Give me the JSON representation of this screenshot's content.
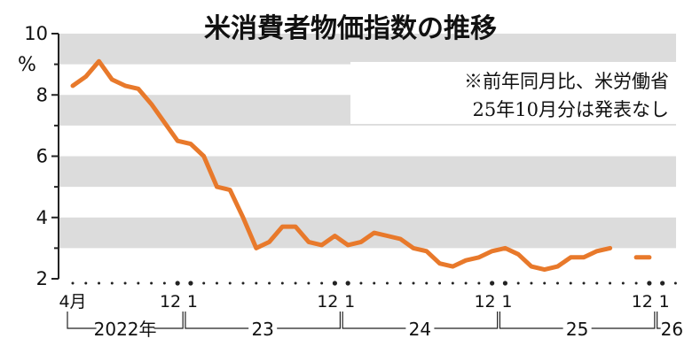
{
  "title": "米消費者物価指数の推移",
  "note": {
    "line1": "※前年同月比、米労働省",
    "line2": "25年10月分は発表なし"
  },
  "y_unit": "%",
  "x_ticks": [
    {
      "label": "4月",
      "index": 0
    },
    {
      "label": "12",
      "index": 8
    },
    {
      "label": "1",
      "index": 9
    },
    {
      "label": "12",
      "index": 20
    },
    {
      "label": "1",
      "index": 21
    },
    {
      "label": "12",
      "index": 32
    },
    {
      "label": "1",
      "index": 33
    },
    {
      "label": "12",
      "index": 44
    },
    {
      "label": "1",
      "index": 45
    }
  ],
  "year_labels": [
    {
      "label": "2022年",
      "start": 0,
      "end": 8
    },
    {
      "label": "23",
      "start": 9,
      "end": 20
    },
    {
      "label": "24",
      "start": 21,
      "end": 32
    },
    {
      "label": "25",
      "start": 33,
      "end": 44
    },
    {
      "label": "26",
      "start": 45,
      "end": 45
    }
  ],
  "colors": {
    "line": "#e8792b",
    "band": "#dcdcdc",
    "axis": "#222222"
  },
  "chart_data": {
    "type": "line",
    "title": "米消費者物価指数の推移",
    "ylabel": "%",
    "ylim": [
      2,
      10
    ],
    "yticks": [
      2,
      4,
      6,
      8,
      10
    ],
    "grid": "horizontal bands",
    "x": [
      "2022-04",
      "2022-05",
      "2022-06",
      "2022-07",
      "2022-08",
      "2022-09",
      "2022-10",
      "2022-11",
      "2022-12",
      "2023-01",
      "2023-02",
      "2023-03",
      "2023-04",
      "2023-05",
      "2023-06",
      "2023-07",
      "2023-08",
      "2023-09",
      "2023-10",
      "2023-11",
      "2023-12",
      "2024-01",
      "2024-02",
      "2024-03",
      "2024-04",
      "2024-05",
      "2024-06",
      "2024-07",
      "2024-08",
      "2024-09",
      "2024-10",
      "2024-11",
      "2024-12",
      "2025-01",
      "2025-02",
      "2025-03",
      "2025-04",
      "2025-05",
      "2025-06",
      "2025-07",
      "2025-08",
      "2025-09",
      "2025-10",
      "2025-11",
      "2025-12"
    ],
    "series": [
      {
        "values": [
          8.3,
          8.6,
          9.1,
          8.5,
          8.3,
          8.2,
          7.7,
          7.1,
          6.5,
          6.4,
          6.0,
          5.0,
          4.9,
          4.0,
          3.0,
          3.2,
          3.7,
          3.7,
          3.2,
          3.1,
          3.4,
          3.1,
          3.2,
          3.5,
          3.4,
          3.3,
          3.0,
          2.9,
          2.5,
          2.4,
          2.6,
          2.7,
          2.9,
          3.0,
          2.8,
          2.4,
          2.3,
          2.4,
          2.7,
          2.7,
          2.9,
          3.0,
          null,
          2.7,
          2.7
        ]
      }
    ]
  }
}
